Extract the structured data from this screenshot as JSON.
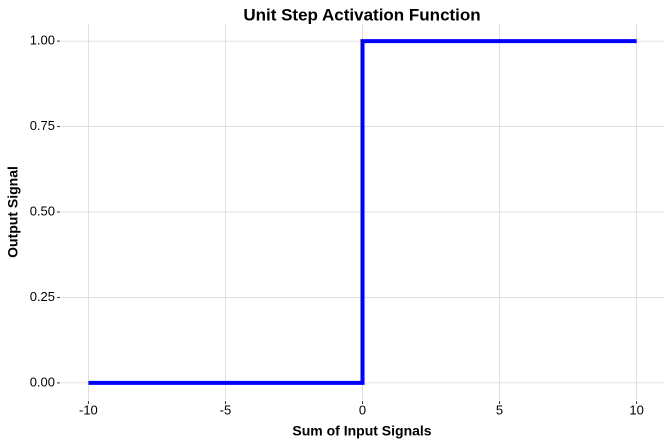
{
  "chart_data": {
    "type": "line",
    "title": "Unit Step Activation Function",
    "x_label": "Sum of Input Signals",
    "y_label": "Output Signal",
    "x": [
      -10,
      0,
      0,
      10
    ],
    "series": [
      {
        "color": "#0000ff",
        "values": [
          0,
          0,
          1,
          1
        ]
      }
    ],
    "xlim": [
      -11,
      11
    ],
    "ylim": [
      -0.05,
      1.05
    ],
    "xticks": [
      -10,
      -5,
      0,
      5,
      10
    ],
    "yticks": [
      {
        "value": 0,
        "label": "0.00"
      },
      {
        "value": 0.25,
        "label": "0.25"
      },
      {
        "value": 0.5,
        "label": "0.50"
      },
      {
        "value": 0.75,
        "label": "0.75"
      },
      {
        "value": 1,
        "label": "1.00"
      }
    ],
    "grid": true
  }
}
